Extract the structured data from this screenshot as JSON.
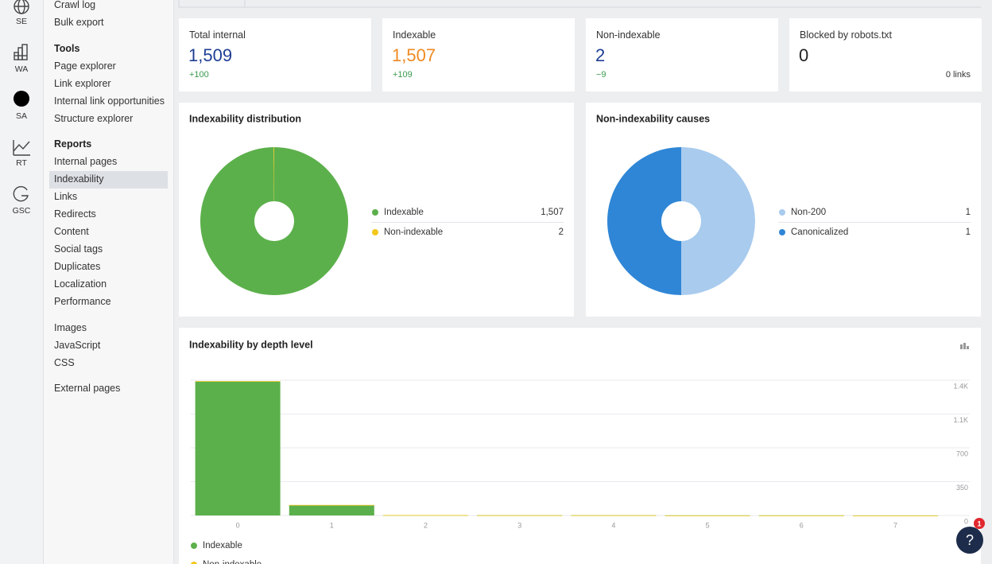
{
  "rail": [
    "SE",
    "WA",
    "SA",
    "RT",
    "GSC"
  ],
  "sidebar": {
    "groups": [
      {
        "items": [
          "Crawl log",
          "Bulk export"
        ]
      },
      {
        "title": "Tools",
        "items": [
          "Page explorer",
          "Link explorer",
          "Internal link opportunities",
          "Structure explorer"
        ]
      },
      {
        "title": "Reports",
        "items": [
          "Internal pages",
          "Indexability",
          "Links",
          "Redirects",
          "Content",
          "Social tags",
          "Duplicates",
          "Localization",
          "Performance"
        ],
        "selected": 1
      },
      {
        "items": [
          "Images",
          "JavaScript",
          "CSS"
        ]
      },
      {
        "items": [
          "External pages"
        ]
      }
    ]
  },
  "kpis": [
    {
      "label": "Total internal",
      "value": "1,509",
      "change": "+100",
      "color": "#1f3f95"
    },
    {
      "label": "Indexable",
      "value": "1,507",
      "change": "+109",
      "color": "#ef8a23"
    },
    {
      "label": "Non-indexable",
      "value": "2",
      "change": "−9",
      "color": "#1f3f95"
    },
    {
      "label": "Blocked by robots.txt",
      "value": "0",
      "note": "0 links",
      "color": "#222222"
    }
  ],
  "donuts": [
    {
      "type": "pie",
      "title": "Indexability distribution",
      "categories": [
        "Indexable",
        "Non-indexable"
      ],
      "values": [
        1507,
        2
      ],
      "value_labels": [
        "1,507",
        "2"
      ],
      "colors": [
        "#5cb04b",
        "#f2c81a"
      ]
    },
    {
      "type": "pie",
      "title": "Non-indexability causes",
      "categories": [
        "Non-200",
        "Canonicalized"
      ],
      "values": [
        1,
        1
      ],
      "value_labels": [
        "1",
        "1"
      ],
      "colors": [
        "#a8cbee",
        "#2f86d6"
      ]
    }
  ],
  "chart_data": {
    "type": "bar",
    "title": "Indexability by depth level",
    "categories": [
      "0",
      "1",
      "2",
      "3",
      "4",
      "5",
      "6",
      "7"
    ],
    "series": [
      {
        "name": "Indexable",
        "color": "#5cb04b",
        "values": [
          1390,
          107,
          4,
          2,
          2,
          1,
          1,
          0
        ]
      },
      {
        "name": "Non-indexable",
        "color": "#f2c81a",
        "values": [
          0,
          2,
          0,
          0,
          0,
          0,
          0,
          0
        ]
      }
    ],
    "stacked": true,
    "ylim": [
      0,
      1400
    ],
    "yticks": [
      {
        "value": 1400,
        "label": "1.4K"
      },
      {
        "value": 1050,
        "label": "1.1K"
      },
      700,
      350,
      0
    ],
    "grid": true
  },
  "help": {
    "label": "?",
    "badge": "1"
  }
}
